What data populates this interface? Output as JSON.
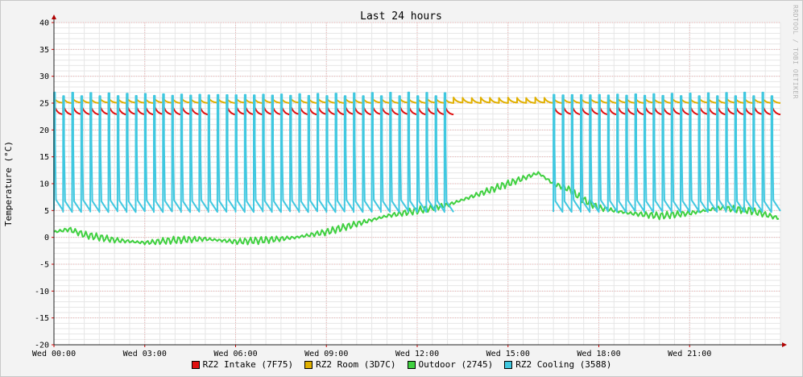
{
  "chart_data": {
    "type": "line",
    "title": "Last 24 hours",
    "ylabel": "Temperature (°C)",
    "xlabel": "",
    "watermark": "RRDTOOL / TOBI OETIKER",
    "ylim": [
      -20,
      40
    ],
    "yticks": [
      -20,
      -15,
      -10,
      -5,
      0,
      5,
      10,
      15,
      20,
      25,
      30,
      35,
      40
    ],
    "ytick_labels": [
      "-20",
      "-15",
      "-10",
      "-5",
      "0",
      "5",
      "10",
      "15",
      "20",
      "25",
      "30",
      "35",
      "40"
    ],
    "xlim_hours": [
      0,
      24
    ],
    "xtick_hours": [
      0,
      3,
      6,
      9,
      12,
      15,
      18,
      21
    ],
    "xtick_labels": [
      "Wed 00:00",
      "Wed 03:00",
      "Wed 06:00",
      "Wed 09:00",
      "Wed 12:00",
      "Wed 15:00",
      "Wed 18:00",
      "Wed 21:00"
    ],
    "grid": true,
    "legend_position": "bottom",
    "series": [
      {
        "name": "RZ2 Intake (7F75)",
        "color": "#e01010",
        "pattern": "sawtooth",
        "period_hours": 0.3,
        "start_hour": 0.0,
        "end_hour": 24.0,
        "gap_hours": [
          [
            5.0,
            5.6
          ],
          [
            13.0,
            16.5
          ]
        ],
        "high": 24.8,
        "low": 22.8
      },
      {
        "name": "RZ2 Room (3D7C)",
        "color": "#e0b000",
        "pattern": "sawtooth",
        "period_hours": 0.3,
        "start_hour": 0.0,
        "end_hour": 24.0,
        "gap_hours": [],
        "high": 26.0,
        "low": 25.0
      },
      {
        "name": "Outdoor (2745)",
        "color": "#40d040",
        "pattern": "trend",
        "x": [
          0,
          0.5,
          1,
          2,
          3,
          4,
          5,
          6,
          7,
          8,
          9,
          10,
          11,
          12,
          13,
          14,
          14.5,
          15,
          15.5,
          16,
          16.5,
          17,
          17.5,
          18,
          19,
          20,
          21,
          22,
          23,
          24
        ],
        "y": [
          1,
          1.5,
          0.5,
          -0.5,
          -1,
          -0.5,
          -0.3,
          -0.8,
          -0.5,
          0.0,
          1.0,
          2.5,
          4.0,
          5.0,
          6.0,
          8.0,
          9.0,
          10.0,
          11.0,
          12.0,
          10.0,
          9.0,
          7.0,
          5.5,
          4.5,
          4.0,
          4.5,
          5.5,
          5.0,
          3.5
        ]
      },
      {
        "name": "RZ2 Cooling (3588)",
        "color": "#40c8e0",
        "pattern": "square",
        "period_hours": 0.3,
        "start_hour": 0.0,
        "end_hour": 23.85,
        "gap_hours": [
          [
            13.0,
            16.5
          ]
        ],
        "high": 27.0,
        "low": 5.0
      }
    ]
  },
  "legend": [
    {
      "label": "RZ2 Intake (7F75)",
      "color": "#e01010"
    },
    {
      "label": "RZ2 Room (3D7C)",
      "color": "#e0b000"
    },
    {
      "label": "Outdoor (2745)",
      "color": "#40d040"
    },
    {
      "label": "RZ2 Cooling (3588)",
      "color": "#40c8e0"
    }
  ]
}
